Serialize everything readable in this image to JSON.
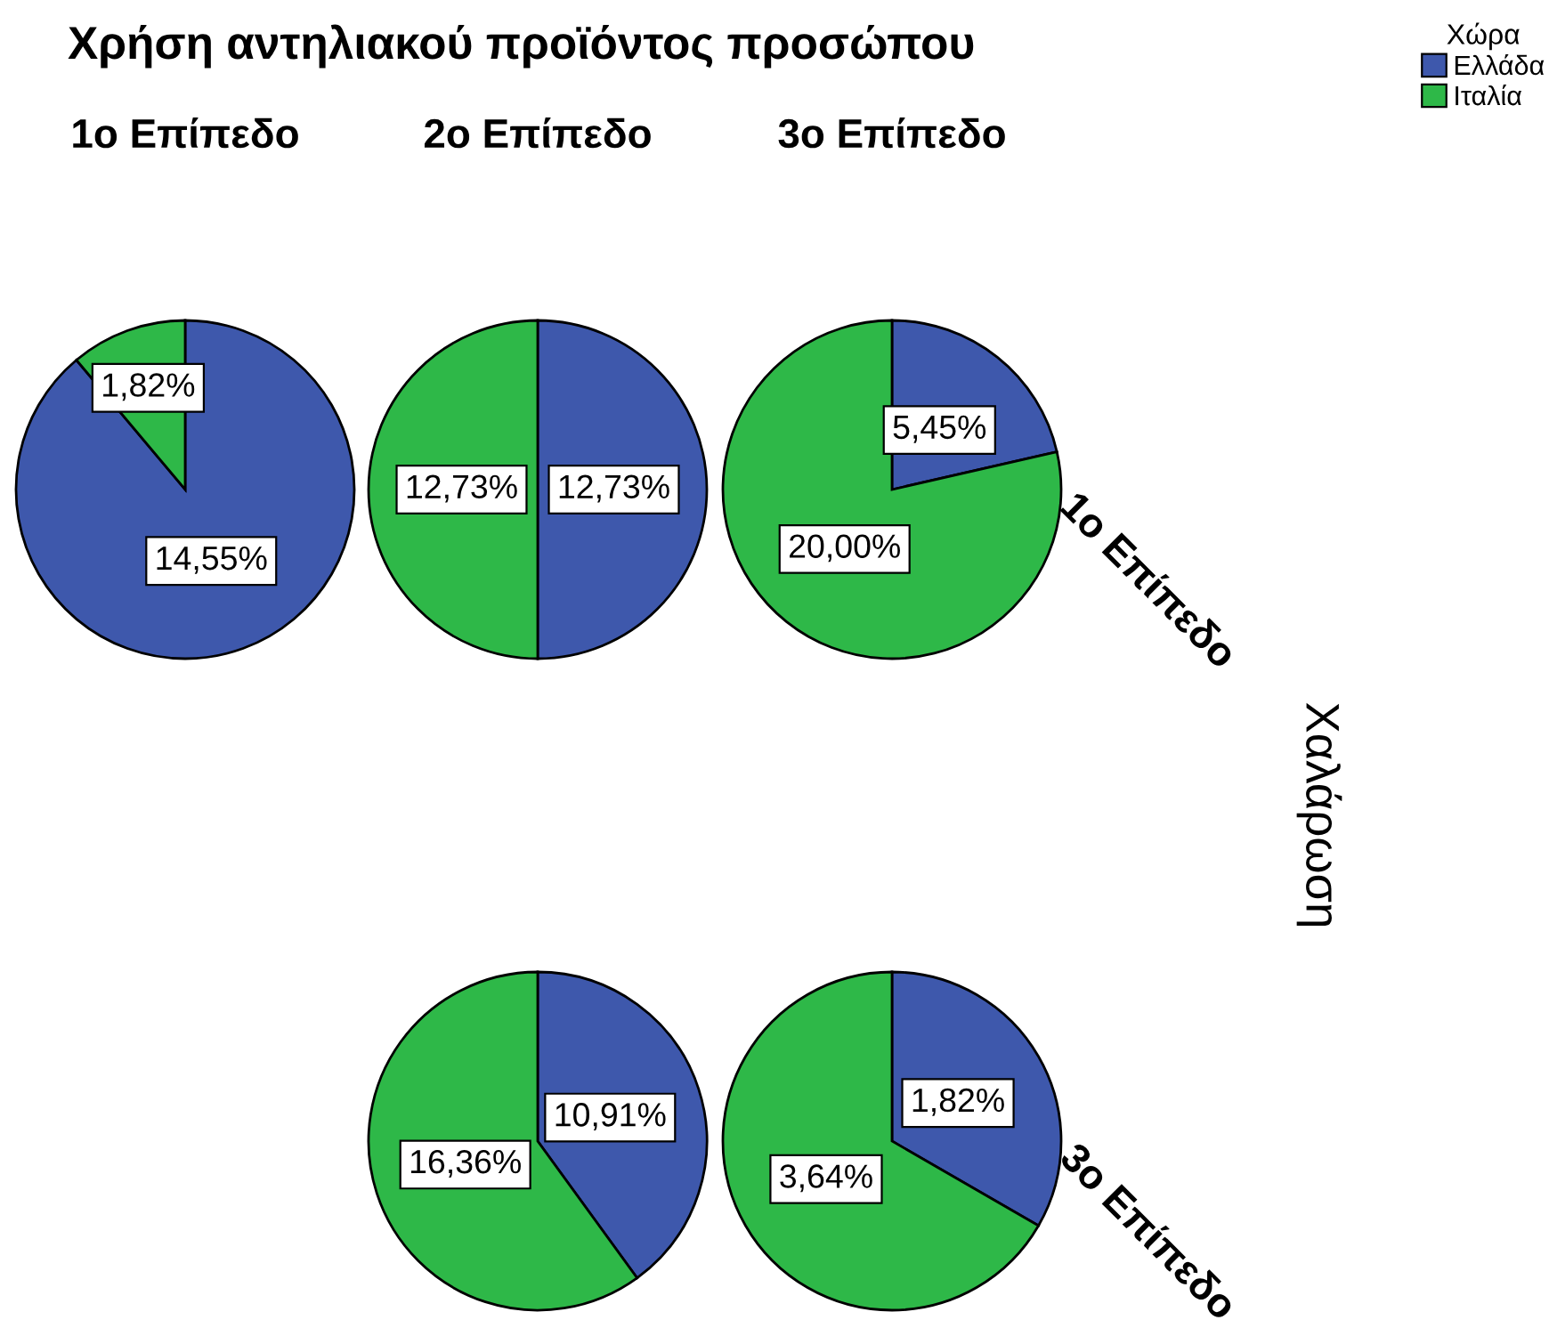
{
  "chart_data": [
    {
      "type": "pie",
      "title": "Χρήση αντηλιακού προϊόντος προσώπου",
      "subtitle": "1ο Επίπεδο",
      "legend": "top right",
      "legend_title": "Χώρα",
      "categories": [
        "Ελλάδα",
        "Ιταλία"
      ],
      "values": [
        14.55,
        1.82
      ],
      "colors": [
        "#3e58ac",
        "#2eb848"
      ],
      "value_labels": [
        "14,55%",
        "1,82%"
      ]
    },
    {
      "type": "pie",
      "subtitle": "2ο Επίπεδο",
      "categories": [
        null,
        null
      ],
      "values": [
        12.73,
        12.73
      ],
      "colors": [
        "#3e58ac",
        "#2eb848"
      ],
      "value_labels": [
        "12,73%",
        "12,73%"
      ]
    },
    {
      "type": "pie",
      "subtitle": "3ο Επίπεδο",
      "y2label": "1ο Επίπεδο",
      "categories": [
        null,
        null
      ],
      "values": [
        5.45,
        20.0
      ],
      "colors": [
        "#3e58ac",
        "#2eb848"
      ],
      "value_labels": [
        "5,45%",
        "20,00%"
      ]
    },
    {
      "type": "pie",
      "categories": [
        null,
        null
      ],
      "values": [
        10.91,
        16.36
      ],
      "colors": [
        "#3e58ac",
        "#2eb848"
      ],
      "value_labels": [
        "10,91%",
        "16,36%"
      ]
    },
    {
      "type": "pie",
      "y2label": "3ο Επίπεδο",
      "annotations": [
        "Χαλάρωση"
      ],
      "categories": [
        null,
        null
      ],
      "values": [
        1.82,
        3.64
      ],
      "colors": [
        "#3e58ac",
        "#2eb848"
      ],
      "value_labels": [
        "1,82%",
        "3,64%"
      ]
    }
  ]
}
